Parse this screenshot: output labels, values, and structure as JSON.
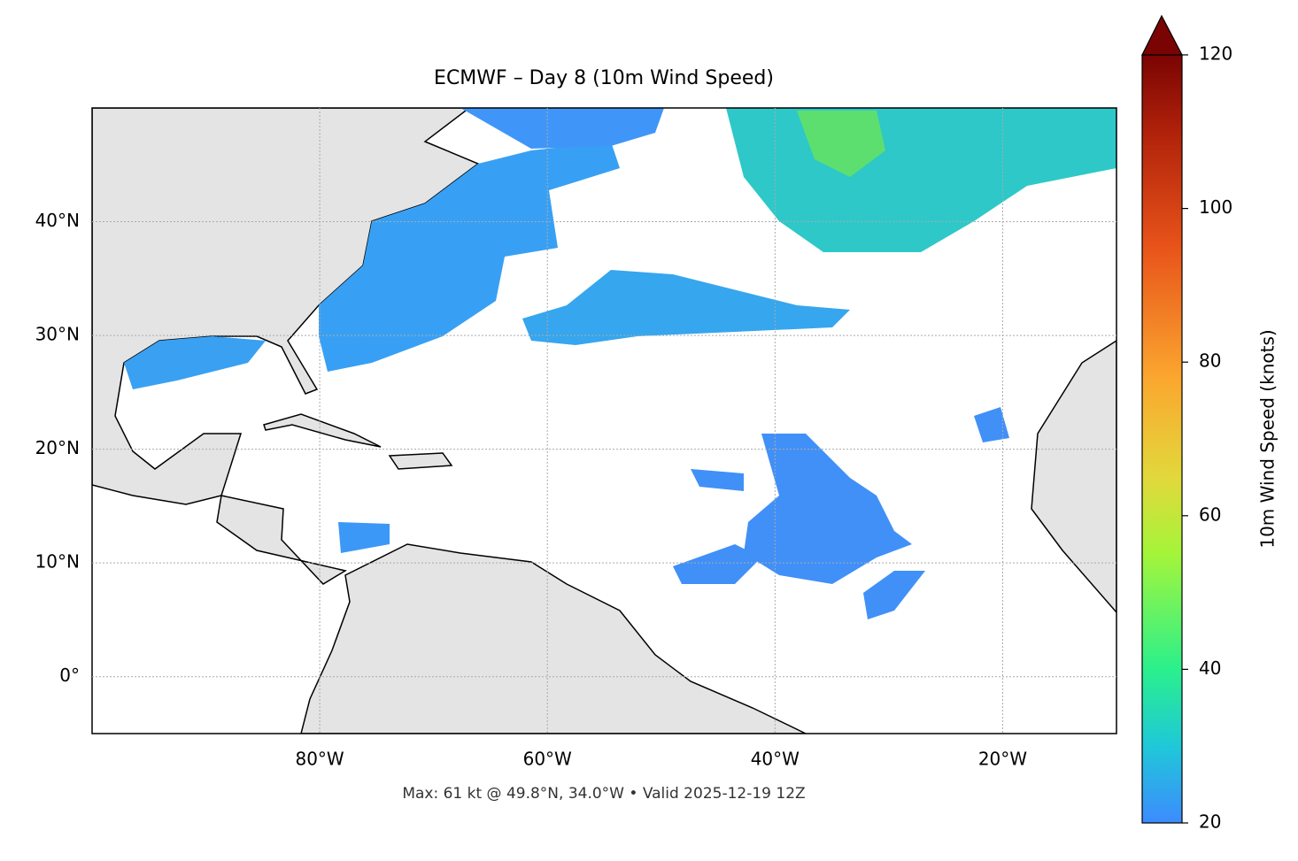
{
  "title": "ECMWF – Day 8 (10m Wind Speed)",
  "footnote": "Max: 61 kt @ 49.8°N, 34.0°W • Valid 2025-12-19 12Z",
  "map": {
    "xlim": [
      -100,
      -10
    ],
    "ylim": [
      -5,
      50
    ],
    "xticks": [
      {
        "value": -80,
        "label": "80°W"
      },
      {
        "value": -60,
        "label": "60°W"
      },
      {
        "value": -40,
        "label": "40°W"
      },
      {
        "value": -20,
        "label": "20°W"
      }
    ],
    "yticks": [
      {
        "value": 0,
        "label": "0°"
      },
      {
        "value": 10,
        "label": "10°N"
      },
      {
        "value": 20,
        "label": "20°N"
      },
      {
        "value": 30,
        "label": "30°N"
      },
      {
        "value": 40,
        "label": "40°N"
      }
    ],
    "grid": true
  },
  "colorbar": {
    "label": "10m Wind Speed (knots)",
    "lim": [
      20,
      120
    ],
    "ticks": [
      20,
      40,
      60,
      80,
      100,
      120
    ]
  }
}
